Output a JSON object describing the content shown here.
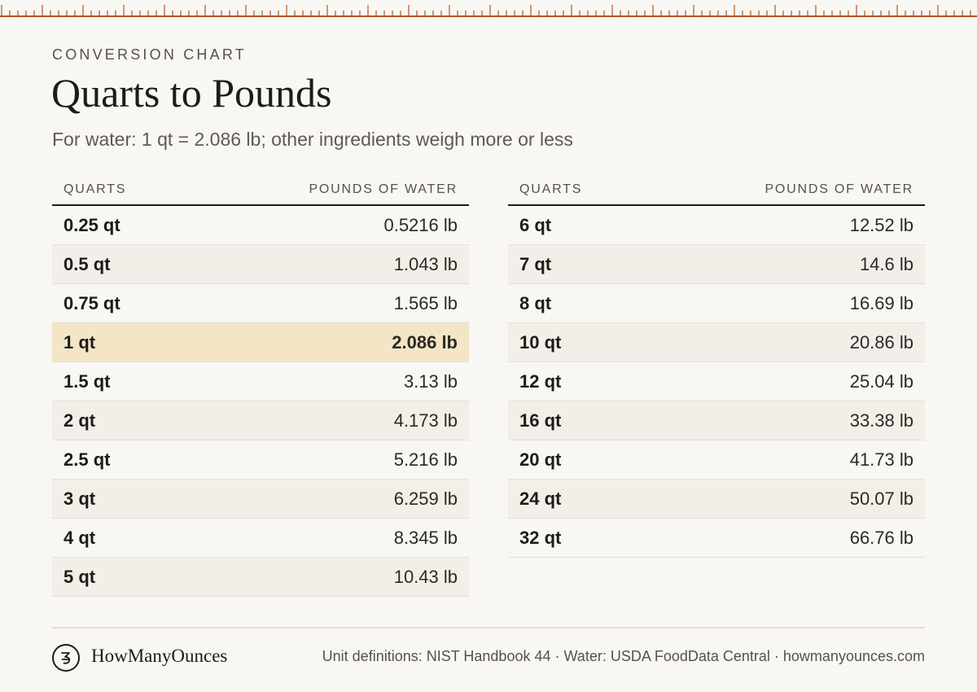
{
  "header": {
    "eyebrow": "CONVERSION CHART",
    "title": "Quarts to Pounds",
    "subtitle": "For water: 1 qt = 2.086 lb; other ingredients weigh more or less"
  },
  "table_columns": {
    "quarts": "QUARTS",
    "pounds": "POUNDS OF WATER"
  },
  "left_rows": [
    {
      "quarts": "0.25 qt",
      "pounds": "0.5216 lb"
    },
    {
      "quarts": "0.5 qt",
      "pounds": "1.043 lb"
    },
    {
      "quarts": "0.75 qt",
      "pounds": "1.565 lb"
    },
    {
      "quarts": "1 qt",
      "pounds": "2.086 lb"
    },
    {
      "quarts": "1.5 qt",
      "pounds": "3.13 lb"
    },
    {
      "quarts": "2 qt",
      "pounds": "4.173 lb"
    },
    {
      "quarts": "2.5 qt",
      "pounds": "5.216 lb"
    },
    {
      "quarts": "3 qt",
      "pounds": "6.259 lb"
    },
    {
      "quarts": "4 qt",
      "pounds": "8.345 lb"
    },
    {
      "quarts": "5 qt",
      "pounds": "10.43 lb"
    }
  ],
  "right_rows": [
    {
      "quarts": "6 qt",
      "pounds": "12.52 lb"
    },
    {
      "quarts": "7 qt",
      "pounds": "14.6 lb"
    },
    {
      "quarts": "8 qt",
      "pounds": "16.69 lb"
    },
    {
      "quarts": "10 qt",
      "pounds": "20.86 lb"
    },
    {
      "quarts": "12 qt",
      "pounds": "25.04 lb"
    },
    {
      "quarts": "16 qt",
      "pounds": "33.38 lb"
    },
    {
      "quarts": "20 qt",
      "pounds": "41.73 lb"
    },
    {
      "quarts": "24 qt",
      "pounds": "50.07 lb"
    },
    {
      "quarts": "32 qt",
      "pounds": "66.76 lb"
    }
  ],
  "highlighted_row": "1 qt",
  "footer": {
    "logo_icon": "ounce-glyph-icon",
    "brand": "HowManyOunces",
    "sources": "Unit definitions: NIST Handbook 44 · Water: USDA FoodData Central · howmanyounces.com"
  },
  "colors": {
    "background": "#f9f7f3",
    "ruler_accent": "#b5551d",
    "highlight_row": "#f3e5c6",
    "alt_row": "#f2efe9",
    "text": "#1e1c19"
  }
}
